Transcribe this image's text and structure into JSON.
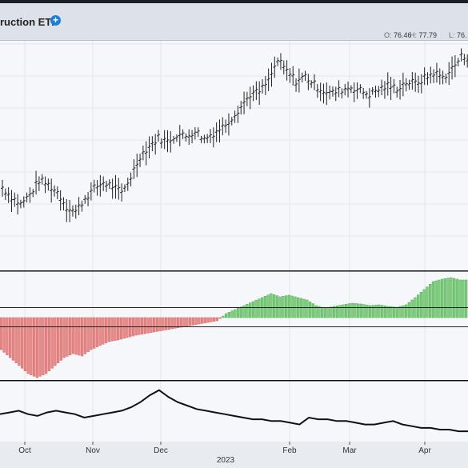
{
  "header": {
    "title": "ruction ETF",
    "add_icon": "plus-circle-icon",
    "ohlc": [
      {
        "key": "O:",
        "value": "76.46"
      },
      {
        "key": "H:",
        "value": "77.79"
      },
      {
        "key": "L:",
        "value": "76."
      }
    ]
  },
  "colors": {
    "price_bars": "#222222",
    "hist_negative": "#e88a8a",
    "hist_positive": "#7fcf7f",
    "line": "#111111",
    "grid": "#e3e6eb",
    "background": "#f5f7fa"
  },
  "chart_data": [
    {
      "type": "ohlc",
      "ylim": [
        60,
        79
      ],
      "y_values_approx": [
        66.8,
        66.0,
        65.4,
        66.2,
        67.4,
        67.0,
        66.4,
        65.2,
        64.8,
        65.9,
        66.7,
        67.2,
        66.9,
        66.3,
        67.7,
        69.4,
        70.2,
        70.9,
        70.6,
        71.2,
        71.0,
        71.5,
        70.8,
        71.3,
        71.8,
        72.6,
        73.5,
        74.5,
        74.7,
        75.6,
        77.3,
        76.4,
        75.6,
        76.0,
        75.3,
        74.8,
        74.6,
        74.9,
        75.1,
        74.8,
        74.5,
        74.9,
        75.2,
        75.0,
        75.5,
        75.4,
        75.8,
        76.3,
        75.9,
        76.6,
        77.6
      ]
    },
    {
      "type": "bar",
      "y_values_approx": [
        -4,
        -5,
        -6,
        -7,
        -7.5,
        -7,
        -6,
        -5,
        -4.5,
        -4.8,
        -4,
        -3.5,
        -3,
        -2.8,
        -2.5,
        -2.2,
        -2,
        -1.8,
        -1.6,
        -1.4,
        -1.2,
        -1,
        -0.8,
        -0.6,
        -0.4,
        0.5,
        1.0,
        1.5,
        2.0,
        2.5,
        3.0,
        2.6,
        2.8,
        2.5,
        2.2,
        1.5,
        1.2,
        1.4,
        1.6,
        1.8,
        1.7,
        1.5,
        1.6,
        1.4,
        1.3,
        1.6,
        2.5,
        3.5,
        4.5,
        4.8,
        5.0,
        4.7
      ]
    },
    {
      "type": "line",
      "y_values_approx": [
        46,
        47,
        48,
        46,
        45,
        47,
        48,
        47,
        46,
        44,
        45,
        46,
        47,
        48,
        50,
        53,
        57,
        60,
        56,
        53,
        51,
        49,
        48,
        47,
        46,
        45,
        44,
        43,
        43,
        42,
        42,
        41,
        40,
        44,
        43,
        43,
        42,
        42,
        41,
        40,
        40,
        41,
        42,
        40,
        39,
        38,
        38,
        37,
        37,
        36,
        36
      ]
    }
  ],
  "x_axis": {
    "months": [
      "Oct",
      "Nov",
      "Dec",
      "Feb",
      "Mar",
      "Apr"
    ],
    "year_label": "2023"
  }
}
